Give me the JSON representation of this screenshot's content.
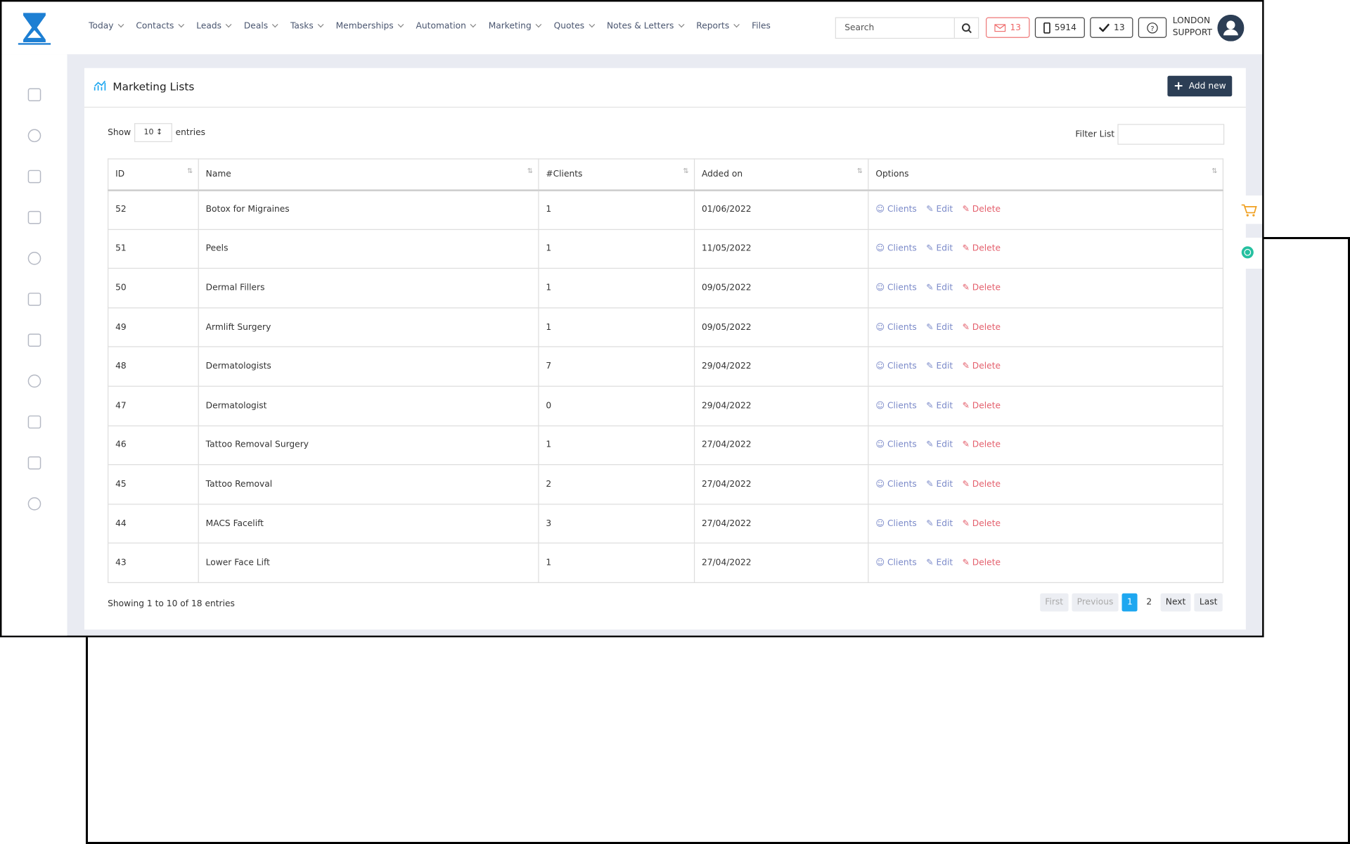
{
  "nav": {
    "items": [
      "Today",
      "Contacts",
      "Leads",
      "Deals",
      "Tasks",
      "Memberships",
      "Automation",
      "Marketing",
      "Quotes",
      "Notes & Letters",
      "Reports",
      "Files"
    ],
    "search": "Search",
    "mail_count": 13,
    "phone_count": 5914,
    "task_count": 13,
    "user": [
      "LONDON",
      "SUPPORT"
    ]
  },
  "page": {
    "title": "Marketing Lists",
    "add_button": "Add new"
  },
  "table": {
    "show_label": "Show",
    "page_size": 10,
    "entries_label": "entries",
    "filter_label": "Filter List",
    "columns": [
      "ID",
      "Name",
      "#Clients",
      "Added on",
      "Options"
    ],
    "rows": [
      [
        52,
        "Botox for Migraines",
        1,
        "01/06/2022"
      ],
      [
        51,
        "Peels",
        1,
        "11/05/2022"
      ],
      [
        50,
        "Dermal Fillers",
        1,
        "09/05/2022"
      ],
      [
        49,
        "Armlift Surgery",
        1,
        "09/05/2022"
      ],
      [
        48,
        "Dermatologists",
        7,
        "29/04/2022"
      ],
      [
        47,
        "Dermatologist",
        0,
        "29/04/2022"
      ],
      [
        46,
        "Tattoo Removal Surgery",
        1,
        "27/04/2022"
      ],
      [
        45,
        "Tattoo Removal",
        2,
        "27/04/2022"
      ],
      [
        44,
        "MACS Facelift",
        3,
        "27/04/2022"
      ],
      [
        43,
        "Lower Face Lift",
        1,
        "27/04/2022"
      ]
    ],
    "actions": [
      "Clients",
      "Edit",
      "Delete"
    ],
    "info": "Showing 1 to 10 of 18 entries"
  },
  "pagination": [
    "First",
    "Previous",
    "1",
    "2",
    "Next",
    "Last"
  ]
}
